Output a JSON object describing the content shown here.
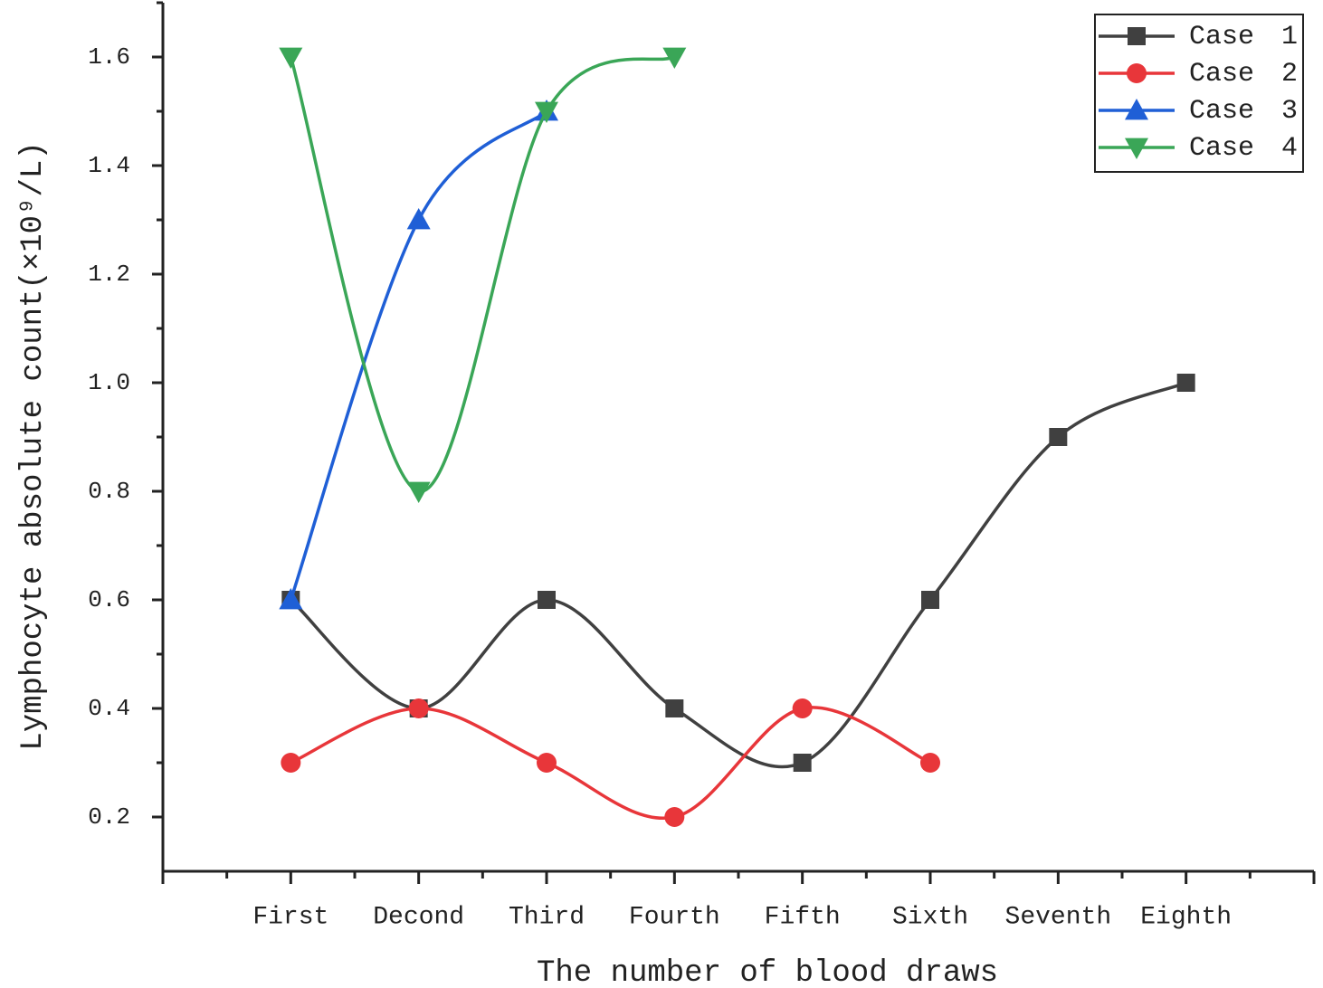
{
  "chart_data": {
    "type": "line",
    "x_label": "The number of blood draws",
    "y_label": "Lymphocyte absolute count(×10⁹/L)",
    "categories": [
      "First",
      "Decond",
      "Third",
      "Fourth",
      "Fifth",
      "Sixth",
      "Seventh",
      "Eighth"
    ],
    "series": [
      {
        "name": "Case 1",
        "color": "#404040",
        "marker": "square",
        "values": [
          0.6,
          0.4,
          0.6,
          0.4,
          0.3,
          0.6,
          0.9,
          1.0
        ]
      },
      {
        "name": "Case 2",
        "color": "#e8363a",
        "marker": "circle",
        "values": [
          0.3,
          0.4,
          0.3,
          0.2,
          0.4,
          0.3,
          null,
          null
        ]
      },
      {
        "name": "Case 3",
        "color": "#1f5fd6",
        "marker": "triangle-up",
        "values": [
          0.6,
          1.3,
          1.5,
          null,
          null,
          null,
          null,
          null
        ]
      },
      {
        "name": "Case 4",
        "color": "#3aa657",
        "marker": "triangle-down",
        "values": [
          1.6,
          0.8,
          1.5,
          1.6,
          null,
          null,
          null,
          null
        ]
      }
    ],
    "ylim": [
      0.1,
      1.7
    ],
    "yticks": [
      0.2,
      0.4,
      0.6,
      0.8,
      {
        "value": 1,
        "label": "1.0"
      },
      1.2,
      1.4,
      1.6
    ],
    "smooth": true,
    "legend": "upper right"
  }
}
